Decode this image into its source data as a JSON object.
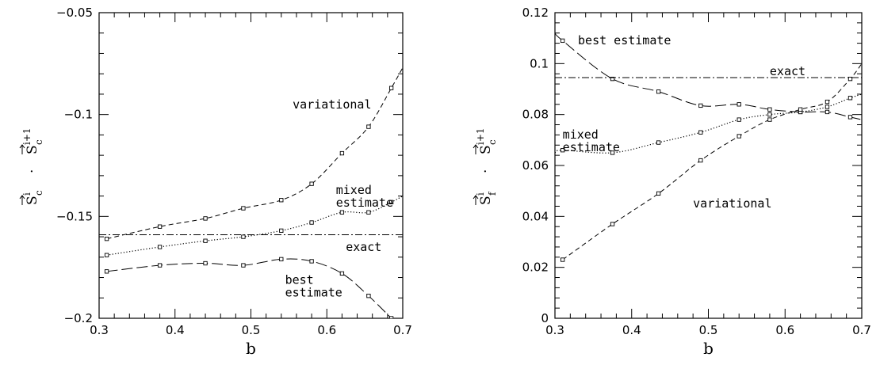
{
  "chart_data": [
    {
      "type": "line",
      "xlabel": "b",
      "ylabel": {
        "left_vec": "S",
        "left_sub": "c",
        "left_sup": "i",
        "dot": "·",
        "right_vec": "S",
        "right_sub": "c",
        "right_sup": "i+1"
      },
      "xlim": [
        0.3,
        0.7
      ],
      "ylim": [
        -0.2,
        -0.05
      ],
      "xticks": [
        0.3,
        0.4,
        0.5,
        0.6,
        0.7
      ],
      "xtick_labels": [
        "0.3",
        "0.4",
        "0.5",
        "0.6",
        "0.7"
      ],
      "yticks": [
        -0.2,
        -0.15,
        -0.1,
        -0.05
      ],
      "ytick_labels": [
        "−0.2",
        "−0.15",
        "−0.1",
        "−0.05"
      ],
      "grid": false,
      "series": [
        {
          "style": "short-dash",
          "x": [
            0.31,
            0.38,
            0.44,
            0.49,
            0.54,
            0.58,
            0.62,
            0.655,
            0.685,
            0.7
          ],
          "y": [
            -0.161,
            -0.155,
            -0.151,
            -0.146,
            -0.142,
            -0.134,
            -0.119,
            -0.106,
            -0.087,
            -0.077
          ],
          "markers": [
            true,
            true,
            true,
            true,
            true,
            true,
            true,
            true,
            true,
            false
          ]
        },
        {
          "style": "dotted",
          "x": [
            0.31,
            0.38,
            0.44,
            0.49,
            0.54,
            0.58,
            0.62,
            0.655,
            0.685,
            0.7
          ],
          "y": [
            -0.169,
            -0.165,
            -0.162,
            -0.16,
            -0.157,
            -0.153,
            -0.148,
            -0.148,
            -0.143,
            -0.14
          ],
          "markers": [
            true,
            true,
            true,
            true,
            true,
            true,
            true,
            true,
            true,
            false
          ]
        },
        {
          "style": "long-dash",
          "x": [
            0.31,
            0.38,
            0.44,
            0.49,
            0.54,
            0.58,
            0.62,
            0.655,
            0.685
          ],
          "y": [
            -0.177,
            -0.174,
            -0.173,
            -0.174,
            -0.171,
            -0.172,
            -0.178,
            -0.189,
            -0.2
          ],
          "markers": [
            true,
            true,
            true,
            true,
            true,
            true,
            true,
            true,
            true
          ]
        },
        {
          "style": "dash-dot",
          "x": [
            0.3,
            0.7
          ],
          "y": [
            -0.159,
            -0.159
          ],
          "markers": [
            false,
            false
          ]
        }
      ],
      "annotations": [
        {
          "lines": [
            "variational"
          ],
          "x": 0.555,
          "y": -0.097
        },
        {
          "lines": [
            "mixed",
            "estimate"
          ],
          "x": 0.612,
          "y": -0.139
        },
        {
          "lines": [
            "exact"
          ],
          "x": 0.625,
          "y": -0.167
        },
        {
          "lines": [
            "best",
            "estimate"
          ],
          "x": 0.545,
          "y": -0.183
        }
      ]
    },
    {
      "type": "line",
      "xlabel": "b",
      "ylabel": {
        "left_vec": "S",
        "left_sub": "f",
        "left_sup": "i",
        "dot": "·",
        "right_vec": "S",
        "right_sub": "c",
        "right_sup": "i+1"
      },
      "xlim": [
        0.3,
        0.7
      ],
      "ylim": [
        0,
        0.12
      ],
      "xticks": [
        0.3,
        0.4,
        0.5,
        0.6,
        0.7
      ],
      "xtick_labels": [
        "0.3",
        "0.4",
        "0.5",
        "0.6",
        "0.7"
      ],
      "yticks": [
        0,
        0.02,
        0.04,
        0.06,
        0.08,
        0.1,
        0.12
      ],
      "ytick_labels": [
        "0",
        "0.02",
        "0.04",
        "0.06",
        "0.08",
        "0.1",
        "0.12"
      ],
      "grid": false,
      "series": [
        {
          "style": "long-dash",
          "x": [
            0.3,
            0.31,
            0.375,
            0.435,
            0.49,
            0.54,
            0.58,
            0.62,
            0.655,
            0.685,
            0.7
          ],
          "y": [
            0.112,
            0.109,
            0.094,
            0.089,
            0.0835,
            0.084,
            0.082,
            0.081,
            0.081,
            0.079,
            0.078
          ],
          "markers": [
            false,
            true,
            true,
            true,
            true,
            true,
            true,
            true,
            true,
            true,
            false
          ]
        },
        {
          "style": "dotted",
          "x": [
            0.3,
            0.31,
            0.375,
            0.435,
            0.49,
            0.54,
            0.58,
            0.62,
            0.655,
            0.685,
            0.7
          ],
          "y": [
            0.065,
            0.066,
            0.065,
            0.069,
            0.073,
            0.078,
            0.08,
            0.081,
            0.083,
            0.0865,
            0.088
          ],
          "markers": [
            false,
            true,
            true,
            true,
            true,
            true,
            true,
            true,
            true,
            true,
            false
          ]
        },
        {
          "style": "short-dash",
          "x": [
            0.31,
            0.375,
            0.435,
            0.49,
            0.54,
            0.58,
            0.62,
            0.655,
            0.685,
            0.7
          ],
          "y": [
            0.023,
            0.037,
            0.049,
            0.062,
            0.0715,
            0.078,
            0.082,
            0.085,
            0.094,
            0.1
          ],
          "markers": [
            true,
            true,
            true,
            true,
            true,
            true,
            true,
            true,
            true,
            false
          ]
        },
        {
          "style": "dash-dot",
          "x": [
            0.3,
            0.7
          ],
          "y": [
            0.0945,
            0.0945
          ],
          "markers": [
            false,
            false
          ]
        }
      ],
      "annotations": [
        {
          "lines": [
            "best estimate"
          ],
          "x": 0.33,
          "y": 0.1075
        },
        {
          "lines": [
            "exact"
          ],
          "x": 0.58,
          "y": 0.0955
        },
        {
          "lines": [
            "mixed",
            "estimate"
          ],
          "x": 0.31,
          "y": 0.0705
        },
        {
          "lines": [
            "variational"
          ],
          "x": 0.48,
          "y": 0.0435
        }
      ]
    }
  ]
}
